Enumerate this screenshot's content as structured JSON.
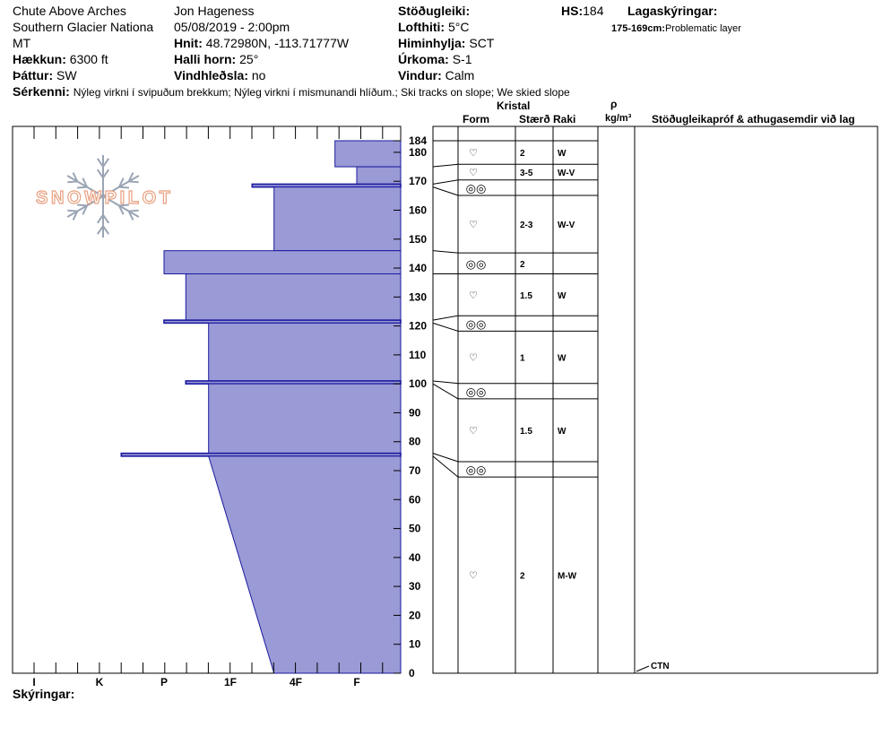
{
  "header": {
    "location": "Chute Above Arches",
    "range": "Southern Glacier Nationa",
    "state": "MT",
    "elevation_label": "Hækkun:",
    "elevation": "6300 ft",
    "aspect_label": "Þáttur:",
    "aspect": "SW",
    "observer": "Jon Hageness",
    "datetime": "05/08/2019 - 2:00pm",
    "coords_label": "Hnit:",
    "coords": "48.72980N, -113.71777W",
    "slope_label": "Halli horn:",
    "slope": "25°",
    "wind_loading_label": "Vindhleðsla:",
    "wind_loading": "no",
    "stability_label": "Stöðugleiki:",
    "air_temp_label": "Lofthiti:",
    "air_temp": "5°C",
    "sky_label": "Himinhylja:",
    "sky": "SCT",
    "precip_label": "Úrkoma:",
    "precip": "S-1",
    "wind_label": "Vindur:",
    "wind": "Calm",
    "hs_label": "HS:",
    "hs": "184",
    "layer_notes_label": "Lagaskýringar:",
    "layer_note_range": "175-169cm:",
    "layer_note_text": "Problematic layer",
    "features_label": "Sérkenni:",
    "features": "Nýleg virkni í svipuðum brekkum; Nýleg virkni í mismunandi hlíðum.; Ski tracks on slope; We skied slope"
  },
  "columns": {
    "crystal": "Kristal",
    "form": "Form",
    "size": "Stærð",
    "moisture": "Raki",
    "density_symbol": "ρ",
    "density_unit": "kg/m³",
    "tests": "Stöðugleikapróf & athugasemdir við lag"
  },
  "footer": {
    "notes_label": "Skýringar:"
  },
  "logo_text": "SNOWPILOT",
  "test_result": "CTN",
  "chart_data": {
    "type": "bar",
    "orientation": "horizontal",
    "y_range": [
      0,
      184
    ],
    "y_ticks": [
      0,
      10,
      20,
      30,
      40,
      50,
      60,
      70,
      80,
      90,
      100,
      110,
      120,
      130,
      140,
      150,
      160,
      170,
      180,
      184
    ],
    "hardness_categories": [
      "I",
      "K",
      "P",
      "1F",
      "4F",
      "F"
    ],
    "layers": [
      {
        "bottom": 175,
        "top": 184,
        "hardness": "F-",
        "size": "2",
        "moisture": "W",
        "form": "rounds"
      },
      {
        "bottom": 169,
        "top": 175,
        "hardness": "F",
        "size": "3-5",
        "moisture": "W-V",
        "form": "rounds"
      },
      {
        "bottom": 168,
        "top": 169,
        "hardness": "1F+",
        "size": "",
        "moisture": "",
        "form": "melt-freeze crust"
      },
      {
        "bottom": 146,
        "top": 168,
        "hardness": "4F-",
        "size": "2-3",
        "moisture": "W-V",
        "form": "rounds"
      },
      {
        "bottom": 138,
        "top": 146,
        "hardness": "P",
        "size": "2",
        "moisture": "",
        "form": "melt-freeze crust"
      },
      {
        "bottom": 122,
        "top": 138,
        "hardness": "P+",
        "size": "1.5",
        "moisture": "W",
        "form": "rounds"
      },
      {
        "bottom": 121,
        "top": 122,
        "hardness": "P",
        "size": "",
        "moisture": "",
        "form": "melt-freeze crust"
      },
      {
        "bottom": 101,
        "top": 121,
        "hardness": "1F-",
        "size": "1",
        "moisture": "W",
        "form": "rounds"
      },
      {
        "bottom": 100,
        "top": 101,
        "hardness": "P+",
        "size": "",
        "moisture": "",
        "form": "melt-freeze crust"
      },
      {
        "bottom": 76,
        "top": 100,
        "hardness": "1F-",
        "size": "1.5",
        "moisture": "W",
        "form": "rounds"
      },
      {
        "bottom": 75,
        "top": 76,
        "hardness": "K+",
        "size": "",
        "moisture": "",
        "form": "melt-freeze crust"
      },
      {
        "bottom": 0,
        "top": 75,
        "hardness_top": "1F-",
        "hardness_bottom": "4F-",
        "size": "2",
        "moisture": "M-W",
        "form": "rounds"
      }
    ],
    "test_depth": 0,
    "colors": {
      "fill": "#9a9ad6",
      "edge": "#1a1aa0",
      "line": "#000000",
      "logo": "#e8a080"
    }
  }
}
